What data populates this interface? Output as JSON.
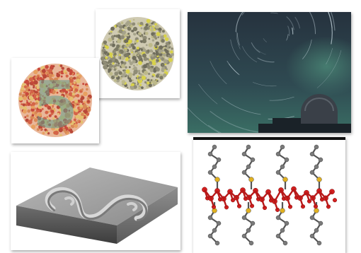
{
  "panels": {
    "plate_plain": {
      "icon": "color-dot-plate-icon"
    },
    "plate_five": {
      "digit": "5",
      "icon": "color-blindness-plate-icon"
    },
    "star_trails": {
      "icon": "night-sky-star-trails-icon"
    },
    "relief": {
      "icon": "3d-relief-surface-icon"
    },
    "molecule": {
      "icon": "ball-and-stick-molecule-icon"
    }
  },
  "colors": {
    "plate_gray": "#8f8c76",
    "plate_yellow": "#d8d24a",
    "plate_red": "#d46448",
    "plate_orange": "#e8a060",
    "plate_teal": "#5f9e8e",
    "sky_top": "#26323e",
    "sky_bottom": "#3a6e64",
    "relief_gray": "#9c9c9c",
    "atom_red": "#d42020",
    "atom_gray": "#7a7a7a",
    "atom_yellow": "#e0b020"
  }
}
